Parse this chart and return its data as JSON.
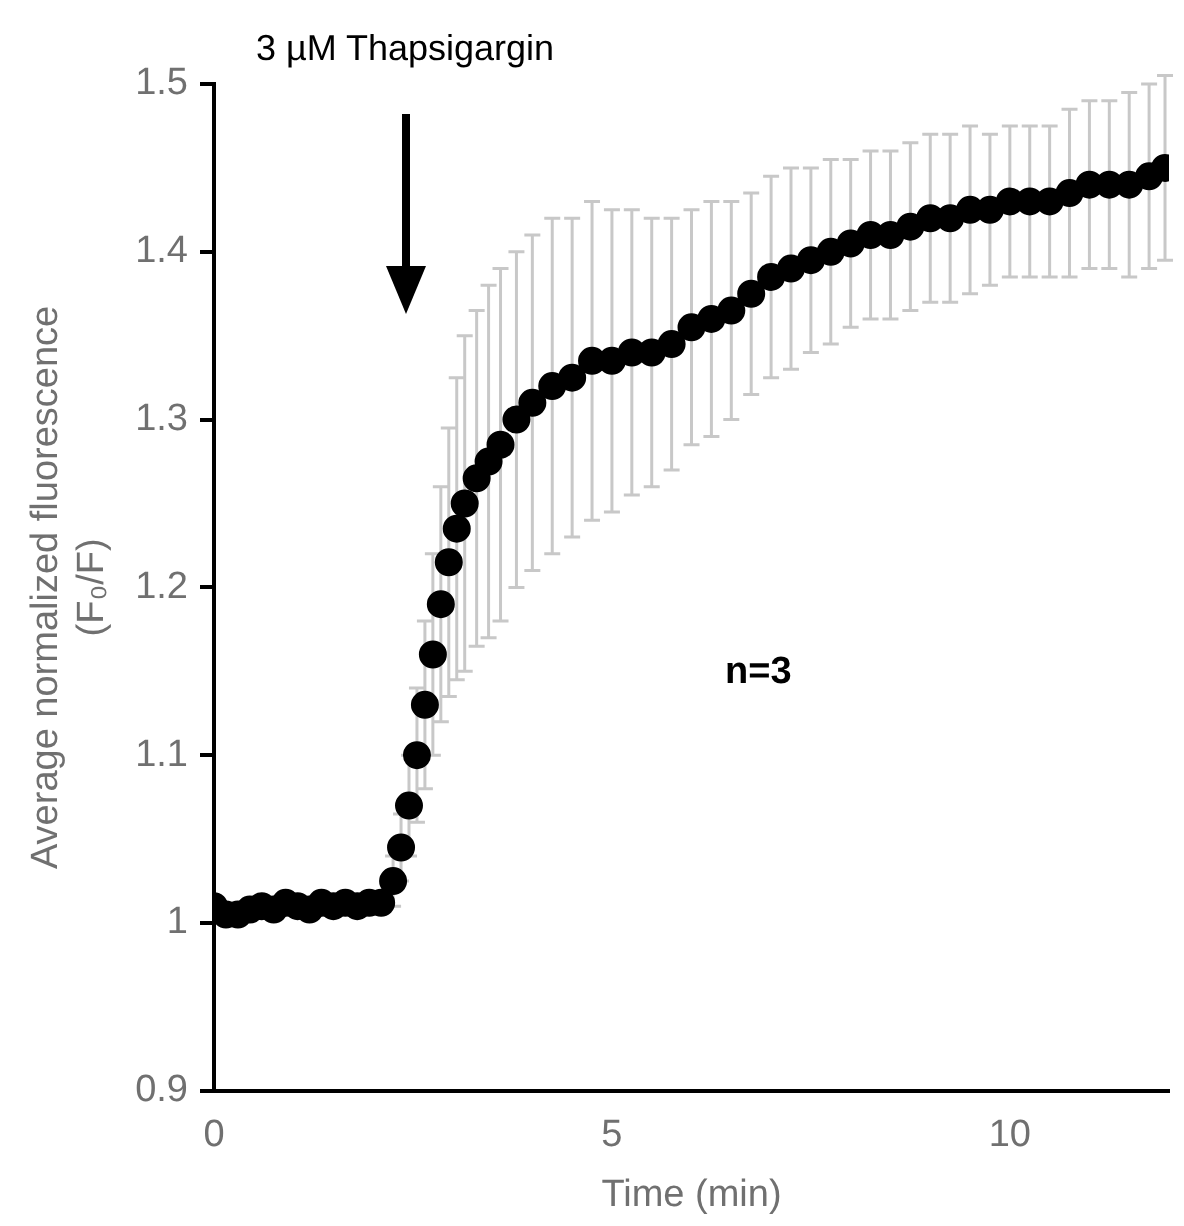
{
  "chart_data": {
    "type": "scatter",
    "xlabel": "Time (min)",
    "ylabel": "Average normalized fluorescence\n(F₀/F)",
    "xlim": [
      0,
      12
    ],
    "xticks": [
      0,
      5,
      10
    ],
    "ylim": [
      0.9,
      1.5
    ],
    "yticks": [
      0.9,
      1,
      1.1,
      1.2,
      1.3,
      1.4,
      1.5
    ],
    "grid": false,
    "legend": false,
    "marker": "circle",
    "annotations": [
      "3 µM Thapsigargin",
      "n=3"
    ],
    "series": [
      {
        "color": "#000000",
        "x": [
          0,
          0.15,
          0.3,
          0.45,
          0.6,
          0.75,
          0.9,
          1.05,
          1.2,
          1.35,
          1.5,
          1.65,
          1.8,
          1.95,
          2.1,
          2.25,
          2.35,
          2.45,
          2.55,
          2.65,
          2.75,
          2.85,
          2.95,
          3.05,
          3.15,
          3.3,
          3.45,
          3.6,
          3.8,
          4,
          4.25,
          4.5,
          4.75,
          5,
          5.25,
          5.5,
          5.75,
          6,
          6.25,
          6.5,
          6.75,
          7,
          7.25,
          7.5,
          7.75,
          8,
          8.25,
          8.5,
          8.75,
          9,
          9.25,
          9.5,
          9.75,
          10,
          10.25,
          10.5,
          10.75,
          11,
          11.25,
          11.5,
          11.75,
          11.95
        ],
        "values": [
          1.01,
          1.005,
          1.005,
          1.008,
          1.01,
          1.008,
          1.012,
          1.01,
          1.008,
          1.012,
          1.01,
          1.012,
          1.01,
          1.012,
          1.012,
          1.025,
          1.045,
          1.07,
          1.1,
          1.13,
          1.16,
          1.19,
          1.215,
          1.235,
          1.25,
          1.265,
          1.275,
          1.285,
          1.3,
          1.31,
          1.32,
          1.325,
          1.335,
          1.335,
          1.34,
          1.34,
          1.345,
          1.355,
          1.36,
          1.365,
          1.375,
          1.385,
          1.39,
          1.395,
          1.4,
          1.405,
          1.41,
          1.41,
          1.415,
          1.42,
          1.42,
          1.425,
          1.425,
          1.43,
          1.43,
          1.43,
          1.435,
          1.44,
          1.44,
          1.44,
          1.445,
          1.45
        ],
        "errors": [
          null,
          null,
          null,
          null,
          null,
          null,
          null,
          null,
          null,
          null,
          null,
          null,
          null,
          null,
          null,
          0.015,
          0.02,
          0.03,
          0.04,
          0.05,
          0.06,
          0.07,
          0.08,
          0.09,
          0.1,
          0.1,
          0.105,
          0.105,
          0.1,
          0.1,
          0.1,
          0.095,
          0.095,
          0.09,
          0.085,
          0.08,
          0.075,
          0.07,
          0.07,
          0.065,
          0.06,
          0.06,
          0.06,
          0.055,
          0.055,
          0.05,
          0.05,
          0.05,
          0.05,
          0.05,
          0.05,
          0.05,
          0.045,
          0.045,
          0.045,
          0.045,
          0.05,
          0.05,
          0.05,
          0.055,
          0.055,
          0.055
        ]
      }
    ]
  }
}
